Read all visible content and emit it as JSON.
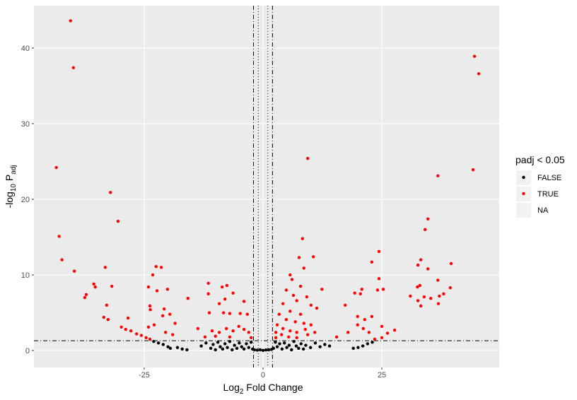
{
  "chart_data": {
    "type": "scatter",
    "xlabel_parts": [
      "Log",
      "2",
      " Fold Change"
    ],
    "ylabel_parts": [
      "-log",
      "10",
      " P",
      "adj"
    ],
    "legend_title": "padj < 0.05",
    "legend_position": "right",
    "grid": true,
    "xlim": [
      -48.2,
      49.7
    ],
    "ylim": [
      -2.24,
      45.6
    ],
    "xticks": [
      -25,
      0,
      25
    ],
    "yticks": [
      0,
      10,
      20,
      30,
      40
    ],
    "reference_lines": {
      "x_dashed": [
        -2,
        2
      ],
      "x_dotted": [
        -1,
        1
      ],
      "y_dashdot": [
        1.3
      ]
    },
    "series": [
      {
        "name": "FALSE",
        "color": "#000000",
        "x": [
          -23,
          -22,
          -21,
          -20,
          -19.5,
          -18,
          -17,
          -16,
          -13,
          -12,
          -11,
          -10.5,
          -10,
          -9.5,
          -9,
          -8.5,
          -8,
          -7.5,
          -7,
          -6.5,
          -6,
          -5.5,
          -5,
          -4.5,
          -4,
          -3.5,
          -3,
          -2.5,
          -2.2,
          -1.8,
          -1.2,
          -0.6,
          0,
          0.6,
          1.2,
          1.8,
          2.2,
          2.6,
          3,
          3.5,
          4,
          4.5,
          5,
          5.5,
          6,
          6.5,
          7,
          7.5,
          8,
          8.5,
          9,
          10,
          11,
          12,
          13,
          14,
          19,
          20,
          21,
          22,
          23
        ],
        "y": [
          1.2,
          1.0,
          0.8,
          0.5,
          0.3,
          0.4,
          0.2,
          0.1,
          0.6,
          1.0,
          0.3,
          0.8,
          0.1,
          1.1,
          0.5,
          0.2,
          0.9,
          0.4,
          1.2,
          0.1,
          0.7,
          0.3,
          1.0,
          0.5,
          0.2,
          0.9,
          0.4,
          1.1,
          0.2,
          0.1,
          0.05,
          0.1,
          0.02,
          0.08,
          0.1,
          0.15,
          0.3,
          1.1,
          0.5,
          0.9,
          0.2,
          1.0,
          0.4,
          0.7,
          0.1,
          1.2,
          0.6,
          0.3,
          0.9,
          0.2,
          0.7,
          0.4,
          1.0,
          0.5,
          0.8,
          0.6,
          0.3,
          0.4,
          0.6,
          0.9,
          1.1
        ]
      },
      {
        "name": "TRUE",
        "color": "#ff0000",
        "x": [
          -40.5,
          -39.9,
          -43.5,
          -32.1,
          -30.5,
          -42.9,
          -42.3,
          -39.7,
          -33.2,
          -31.8,
          -35.6,
          -35.3,
          -37.2,
          -37.5,
          -32.9,
          -33.5,
          -32.6,
          -28.4,
          -29.8,
          -28.9,
          -27.8,
          -26.6,
          -25.6,
          -24.6,
          -23.8,
          -23.2,
          -22.5,
          -21.4,
          -24.1,
          -22.3,
          -20.1,
          -23.8,
          -23.7,
          -20.8,
          -21.1,
          -19.6,
          -18.5,
          -15.8,
          -24.1,
          -22.9,
          -20.5,
          -19.0,
          -11.5,
          -11.5,
          -8.6,
          -7.6,
          -8.0,
          -6.3,
          -4.0,
          -11.3,
          -9.2,
          -8.3,
          -7.0,
          -4.8,
          -3.3,
          -13.7,
          -10.7,
          -9.2,
          -7.7,
          -6.3,
          -5.1,
          -4.0,
          -3.0,
          -2.5,
          -12.2,
          -10.0,
          -7.0,
          9.4,
          8.3,
          7.6,
          10.6,
          5.7,
          8.6,
          6.1,
          7.9,
          12.4,
          4.9,
          6.4,
          9.2,
          7.1,
          10.1,
          11.3,
          4.2,
          5.7,
          7.9,
          3.4,
          4.9,
          6.8,
          8.6,
          10.1,
          3.0,
          4.2,
          5.7,
          7.1,
          8.9,
          2.7,
          3.9,
          5.4,
          7.1,
          9.4,
          10.9,
          2.7,
          17.3,
          15.5,
          17.9,
          19.3,
          20.8,
          20.5,
          22.9,
          24.4,
          24.4,
          24.1,
          25.3,
          19.9,
          21.4,
          22.9,
          19.9,
          21.1,
          22.3,
          25.0,
          26.2,
          27.7,
          25.0,
          23.5,
          36.8,
          34.7,
          34.1,
          33.2,
          34.7,
          32.6,
          36.8,
          32.5,
          33.0,
          31.0,
          32.6,
          33.2,
          33.9,
          35.3,
          37.1,
          38.0,
          36.9,
          39.6,
          39.4,
          44.5,
          45.4,
          44.2
        ],
        "y": [
          43.6,
          37.4,
          24.2,
          20.9,
          17.1,
          15.1,
          12.0,
          10.5,
          11.0,
          8.5,
          8.8,
          8.4,
          7.4,
          7.0,
          6.0,
          4.4,
          4.1,
          4.3,
          3.1,
          2.8,
          2.6,
          2.2,
          2.0,
          1.7,
          1.5,
          10.0,
          11.1,
          11.0,
          8.4,
          7.9,
          8.1,
          5.9,
          5.4,
          5.5,
          4.6,
          4.8,
          3.6,
          6.9,
          3.1,
          3.4,
          2.4,
          2.1,
          8.9,
          7.5,
          8.4,
          8.6,
          6.8,
          7.6,
          6.5,
          5.0,
          6.2,
          5.0,
          4.9,
          4.9,
          4.8,
          2.9,
          2.6,
          2.4,
          2.9,
          2.6,
          3.2,
          2.8,
          2.4,
          1.7,
          1.8,
          1.9,
          1.8,
          25.4,
          14.8,
          12.3,
          12.4,
          10.0,
          10.9,
          9.4,
          8.5,
          8.1,
          8.0,
          7.3,
          7.1,
          6.6,
          6.0,
          5.6,
          6.2,
          5.2,
          4.8,
          4.8,
          4.1,
          3.8,
          3.6,
          3.4,
          3.4,
          2.9,
          2.6,
          2.4,
          2.8,
          2.4,
          2.1,
          1.8,
          1.7,
          2.1,
          2.4,
          1.7,
          6.0,
          1.8,
          2.4,
          7.6,
          8.1,
          7.5,
          11.7,
          13.1,
          9.5,
          8.0,
          8.1,
          4.5,
          4.1,
          4.5,
          3.4,
          2.9,
          2.4,
          3.2,
          2.3,
          2.7,
          1.7,
          1.5,
          23.1,
          17.4,
          16.0,
          12.0,
          10.8,
          11.3,
          9.3,
          8.4,
          8.6,
          7.2,
          6.6,
          5.9,
          7.1,
          6.9,
          7.2,
          7.5,
          6.2,
          11.5,
          8.3,
          38.9,
          36.6,
          23.9
        ]
      },
      {
        "name": "NA",
        "color": null,
        "x": [],
        "y": []
      }
    ]
  }
}
